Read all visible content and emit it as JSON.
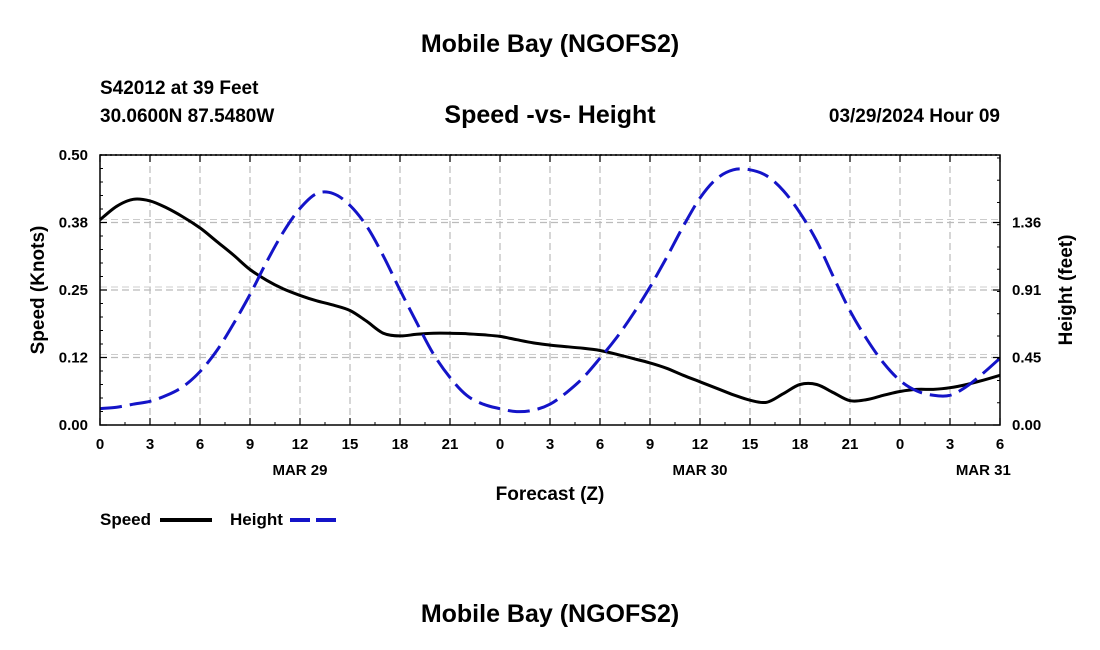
{
  "main_title": "Mobile Bay (NGOFS2)",
  "bottom_title": "Mobile Bay (NGOFS2)",
  "station": "S42012 at 39 Feet",
  "coordinates": "30.0600N  87.5480W",
  "datetime": "03/29/2024 Hour 09",
  "legend": {
    "speed_label": "Speed",
    "height_label": "Height"
  },
  "chart_data": {
    "type": "line",
    "title": "Speed -vs- Height",
    "xlabel": "Forecast (Z)",
    "ylabel": "Speed (Knots)",
    "y2label": "Height (feet)",
    "x_range": [
      0,
      54
    ],
    "x_ticks": [
      0,
      3,
      6,
      9,
      12,
      15,
      18,
      21,
      24,
      27,
      30,
      33,
      36,
      39,
      42,
      45,
      48,
      51,
      54
    ],
    "x_tick_labels": [
      "0",
      "3",
      "6",
      "9",
      "12",
      "15",
      "18",
      "21",
      "0",
      "3",
      "6",
      "9",
      "12",
      "15",
      "18",
      "21",
      "0",
      "3",
      "6"
    ],
    "date_labels": [
      {
        "x": 12,
        "label": "MAR 29"
      },
      {
        "x": 36,
        "label": "MAR 30"
      },
      {
        "x": 53,
        "label": "MAR 31"
      }
    ],
    "ylim": [
      0,
      0.5
    ],
    "y_ticks": [
      0.0,
      0.125,
      0.25,
      0.375,
      0.5
    ],
    "y_tick_labels": [
      "0.00",
      "0.12",
      "0.25",
      "0.38",
      "0.50"
    ],
    "y2lim": [
      0,
      1.82
    ],
    "y2_ticks": [
      0.0,
      0.455,
      0.91,
      1.365
    ],
    "y2_tick_labels": [
      "0.00",
      "0.45",
      "0.91",
      "1.36"
    ],
    "grid": true,
    "series": [
      {
        "name": "Speed",
        "axis": "left",
        "color": "#000000",
        "style": "solid",
        "x": [
          0,
          1,
          2,
          3,
          4,
          5,
          6,
          7,
          8,
          9,
          10,
          11,
          12,
          13,
          14,
          15,
          16,
          17,
          18,
          19,
          20,
          21,
          22,
          23,
          24,
          25,
          26,
          27,
          28,
          29,
          30,
          31,
          32,
          33,
          34,
          35,
          36,
          37,
          38,
          39,
          40,
          41,
          42,
          43,
          44,
          45,
          46,
          47,
          48,
          49,
          50,
          51,
          52,
          53,
          54
        ],
        "values": [
          0.38,
          0.405,
          0.418,
          0.415,
          0.402,
          0.385,
          0.365,
          0.34,
          0.315,
          0.288,
          0.268,
          0.252,
          0.24,
          0.23,
          0.222,
          0.212,
          0.192,
          0.17,
          0.165,
          0.168,
          0.17,
          0.17,
          0.169,
          0.167,
          0.164,
          0.158,
          0.152,
          0.148,
          0.145,
          0.142,
          0.138,
          0.131,
          0.123,
          0.115,
          0.105,
          0.092,
          0.08,
          0.068,
          0.056,
          0.046,
          0.042,
          0.058,
          0.075,
          0.075,
          0.06,
          0.045,
          0.047,
          0.055,
          0.062,
          0.066,
          0.066,
          0.069,
          0.075,
          0.083,
          0.092
        ]
      },
      {
        "name": "Height",
        "axis": "right",
        "color": "#1414c8",
        "style": "dashed",
        "x": [
          0,
          1,
          2,
          3,
          4,
          5,
          6,
          7,
          8,
          9,
          10,
          11,
          12,
          13,
          14,
          15,
          16,
          17,
          18,
          19,
          20,
          21,
          22,
          23,
          24,
          25,
          26,
          27,
          28,
          29,
          30,
          31,
          32,
          33,
          34,
          35,
          36,
          37,
          38,
          39,
          40,
          41,
          42,
          43,
          44,
          45,
          46,
          47,
          48,
          49,
          50,
          51,
          52,
          53,
          54
        ],
        "values": [
          0.11,
          0.12,
          0.14,
          0.16,
          0.2,
          0.26,
          0.36,
          0.5,
          0.68,
          0.88,
          1.1,
          1.3,
          1.46,
          1.56,
          1.56,
          1.48,
          1.34,
          1.14,
          0.91,
          0.69,
          0.48,
          0.32,
          0.2,
          0.14,
          0.11,
          0.09,
          0.1,
          0.14,
          0.22,
          0.32,
          0.45,
          0.59,
          0.75,
          0.93,
          1.13,
          1.34,
          1.53,
          1.66,
          1.72,
          1.72,
          1.68,
          1.58,
          1.43,
          1.24,
          1.0,
          0.77,
          0.58,
          0.42,
          0.3,
          0.23,
          0.2,
          0.2,
          0.26,
          0.35,
          0.45
        ]
      }
    ]
  }
}
